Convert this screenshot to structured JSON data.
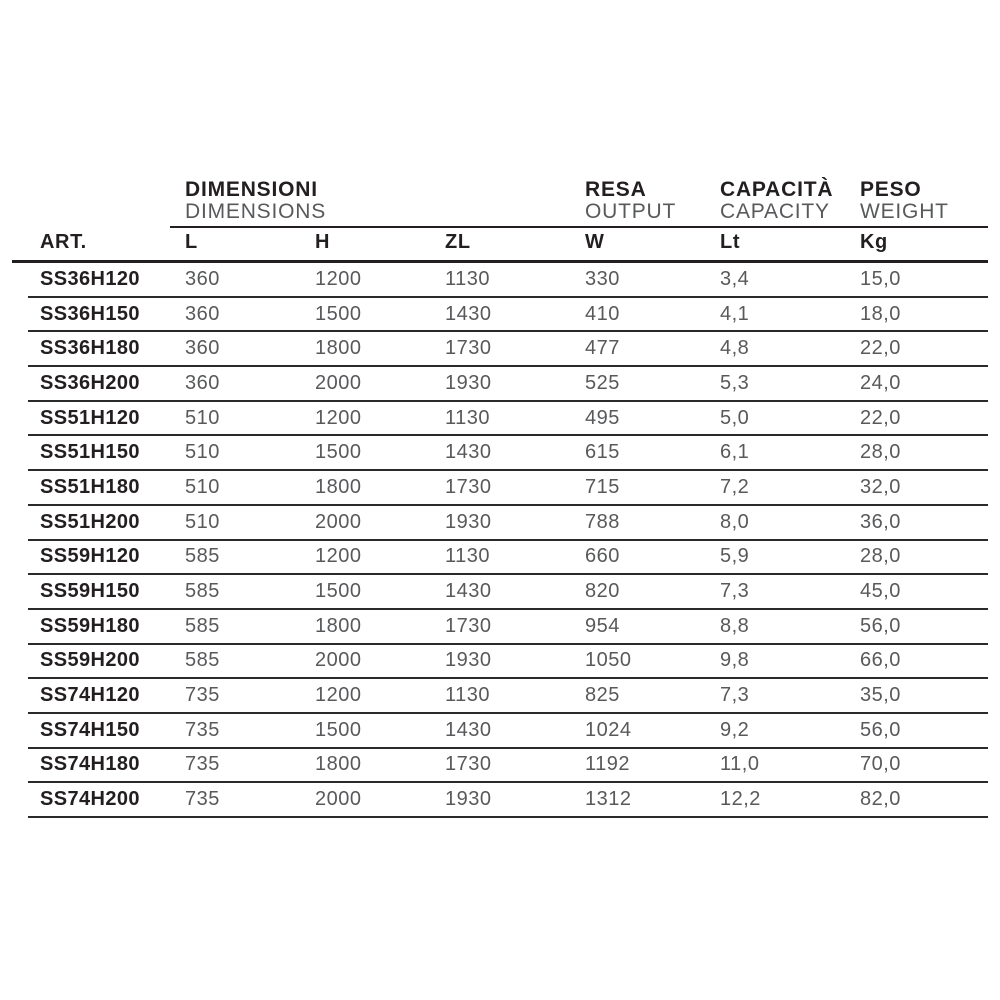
{
  "colors": {
    "background": "#ffffff",
    "text_black": "#231f20",
    "text_gray": "#58595b",
    "rule": "#231f20"
  },
  "table": {
    "groups": [
      {
        "title": "DIMENSIONI",
        "subtitle": "DIMENSIONS"
      },
      {
        "title": "RESA",
        "subtitle": "OUTPUT"
      },
      {
        "title": "CAPACITÀ",
        "subtitle": "CAPACITY"
      },
      {
        "title": "PESO",
        "subtitle": "WEIGHT"
      }
    ],
    "columns": {
      "art": "ART.",
      "l": "L",
      "h": "H",
      "zl": "ZL",
      "w": "W",
      "lt": "Lt",
      "kg": "Kg"
    },
    "rows": [
      [
        "SS36H120",
        "360",
        "1200",
        "1130",
        "330",
        "3,4",
        "15,0"
      ],
      [
        "SS36H150",
        "360",
        "1500",
        "1430",
        "410",
        "4,1",
        "18,0"
      ],
      [
        "SS36H180",
        "360",
        "1800",
        "1730",
        "477",
        "4,8",
        "22,0"
      ],
      [
        "SS36H200",
        "360",
        "2000",
        "1930",
        "525",
        "5,3",
        "24,0"
      ],
      [
        "SS51H120",
        "510",
        "1200",
        "1130",
        "495",
        "5,0",
        "22,0"
      ],
      [
        "SS51H150",
        "510",
        "1500",
        "1430",
        "615",
        "6,1",
        "28,0"
      ],
      [
        "SS51H180",
        "510",
        "1800",
        "1730",
        "715",
        "7,2",
        "32,0"
      ],
      [
        "SS51H200",
        "510",
        "2000",
        "1930",
        "788",
        "8,0",
        "36,0"
      ],
      [
        "SS59H120",
        "585",
        "1200",
        "1130",
        "660",
        "5,9",
        "28,0"
      ],
      [
        "SS59H150",
        "585",
        "1500",
        "1430",
        "820",
        "7,3",
        "45,0"
      ],
      [
        "SS59H180",
        "585",
        "1800",
        "1730",
        "954",
        "8,8",
        "56,0"
      ],
      [
        "SS59H200",
        "585",
        "2000",
        "1930",
        "1050",
        "9,8",
        "66,0"
      ],
      [
        "SS74H120",
        "735",
        "1200",
        "1130",
        "825",
        "7,3",
        "35,0"
      ],
      [
        "SS74H150",
        "735",
        "1500",
        "1430",
        "1024",
        "9,2",
        "56,0"
      ],
      [
        "SS74H180",
        "735",
        "1800",
        "1730",
        "1192",
        "11,0",
        "70,0"
      ],
      [
        "SS74H200",
        "735",
        "2000",
        "1930",
        "1312",
        "12,2",
        "82,0"
      ]
    ]
  }
}
